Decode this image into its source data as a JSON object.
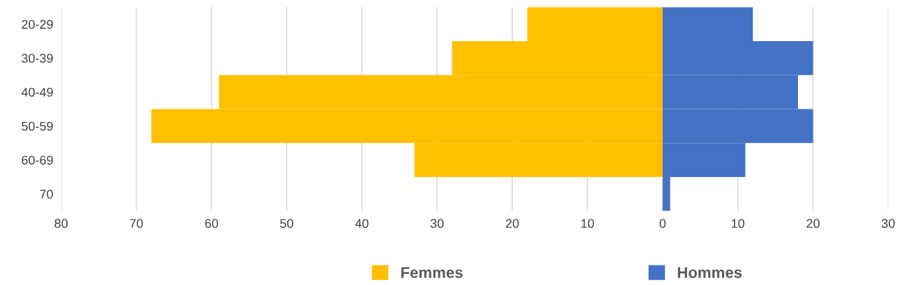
{
  "chart_data": {
    "type": "bar",
    "orientation": "horizontal",
    "stacked": true,
    "categories": [
      "20-29",
      "30-39",
      "40-49",
      "50-59",
      "60-69",
      "70"
    ],
    "series": [
      {
        "name": "Femmes",
        "color": "#ffc000",
        "values": [
          -18,
          -28,
          -59,
          -68,
          -33,
          null
        ]
      },
      {
        "name": "Hommes",
        "color": "#4472c4",
        "values": [
          12,
          20,
          18,
          20,
          11,
          1
        ]
      }
    ],
    "xlim": [
      -80,
      30
    ],
    "xticks": [
      {
        "value": -80,
        "label": "80"
      },
      {
        "value": -70,
        "label": "70"
      },
      {
        "value": -60,
        "label": "60"
      },
      {
        "value": -50,
        "label": "50"
      },
      {
        "value": -40,
        "label": "40"
      },
      {
        "value": -30,
        "label": "30"
      },
      {
        "value": -20,
        "label": "20"
      },
      {
        "value": -10,
        "label": "10"
      },
      0,
      10,
      20,
      30
    ],
    "grid": "x",
    "legend": "bottom"
  }
}
